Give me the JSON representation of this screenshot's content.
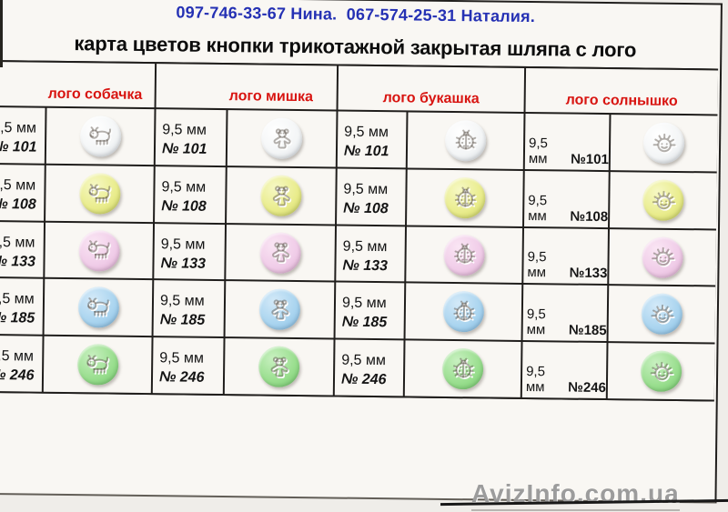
{
  "contact_line": "097-746-33-67 Нина.  067-574-25-31 Наталия.",
  "title": "карта цветов кнопки трикотажной закрытая шляпа с лого",
  "size_label": "9,5 мм",
  "columns": [
    {
      "header": "лого собачка",
      "icon": "dog"
    },
    {
      "header": "лого мишка",
      "icon": "bear"
    },
    {
      "header": "лого букашка",
      "icon": "bug"
    },
    {
      "header": "лого солнышко",
      "icon": "sun"
    }
  ],
  "rows": [
    {
      "id": "101",
      "number": "№ 101",
      "number_inline": "№101",
      "base": "#f3f5f6",
      "hi": "#ffffff",
      "lo": "#ccd2d8"
    },
    {
      "id": "108",
      "number": "№ 108",
      "number_inline": "№108",
      "base": "#e9ec8c",
      "hi": "#f6f8c4",
      "lo": "#c2ca58"
    },
    {
      "id": "133",
      "number": "№ 133",
      "number_inline": "№133",
      "base": "#f0cce8",
      "hi": "#fae6f4",
      "lo": "#d5a6c9"
    },
    {
      "id": "185",
      "number": "№ 185",
      "number_inline": "№185",
      "base": "#a9d4ef",
      "hi": "#d3e9f8",
      "lo": "#7cb2da"
    },
    {
      "id": "246",
      "number": "№ 246",
      "number_inline": "№246",
      "base": "#99de8e",
      "hi": "#c8f0c0",
      "lo": "#6cc166"
    }
  ],
  "watermark": "AvizInfo.com.ua",
  "colors": {
    "header_red": "#d81410",
    "phone_blue": "#2531b4",
    "paper": "#f9f7f3",
    "line": "#201e1c",
    "watermark_gray": "#9c9c9c"
  }
}
